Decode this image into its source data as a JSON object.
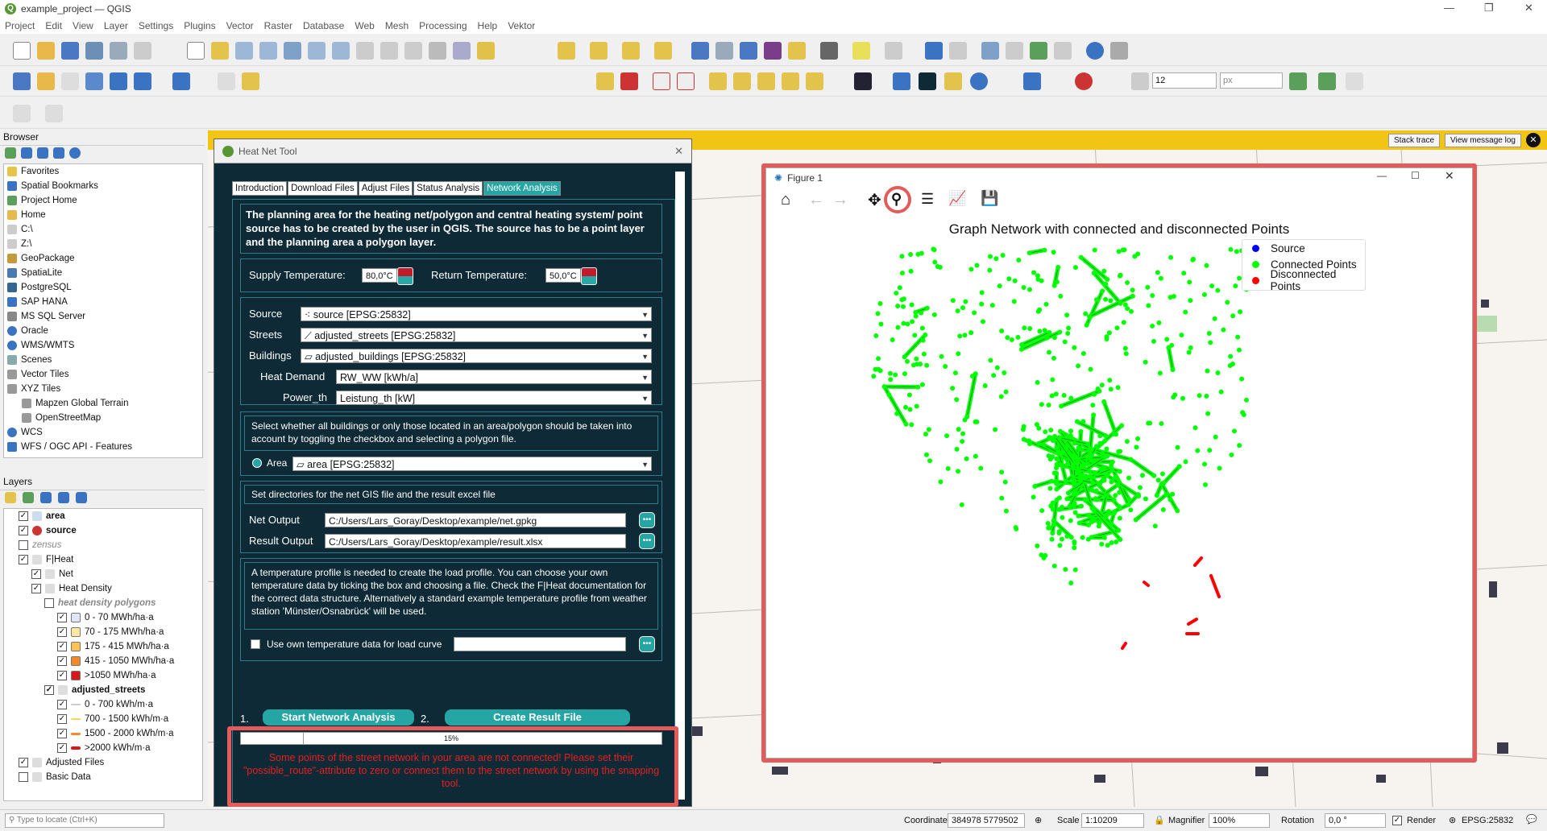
{
  "window": {
    "title": "example_project — QGIS"
  },
  "menu": [
    "Project",
    "Edit",
    "View",
    "Layer",
    "Settings",
    "Plugins",
    "Vector",
    "Raster",
    "Database",
    "Web",
    "Mesh",
    "Processing",
    "Help",
    "Vektor"
  ],
  "toolbar": {
    "font_size": "12",
    "unit": "px"
  },
  "browser": {
    "title": "Browser",
    "items": [
      "Favorites",
      "Spatial Bookmarks",
      "Project Home",
      "Home",
      "C:\\",
      "Z:\\",
      "GeoPackage",
      "SpatiaLite",
      "PostgreSQL",
      "SAP HANA",
      "MS SQL Server",
      "Oracle",
      "WMS/WMTS",
      "Scenes",
      "Vector Tiles",
      "XYZ Tiles",
      "Mapzen Global Terrain",
      "OpenStreetMap",
      "WCS",
      "WFS / OGC API - Features"
    ]
  },
  "layers": {
    "title": "Layers",
    "items": [
      "area",
      "source",
      "zensus",
      "F|Heat",
      "Net",
      "Heat Density",
      "heat density polygons",
      "0 - 70 MWh/ha·a",
      "70 - 175 MWh/ha·a",
      "175 - 415 MWh/ha·a",
      "415 - 1050 MWh/ha·a",
      ">1050 MWh/ha·a",
      "adjusted_streets",
      "0 - 700 kWh/m·a",
      "700 - 1500 kWh/m·a",
      "1500 - 2000 kWh/m·a",
      ">2000 kWh/m·a",
      "Adjusted Files",
      "Basic Data"
    ]
  },
  "msgbar": {
    "stack_trace": "Stack trace",
    "view_log": "View message log"
  },
  "tool": {
    "title": "Heat Net Tool",
    "tabs": [
      "Introduction",
      "Download Files",
      "Adjust Files",
      "Status Analysis",
      "Network Analysis"
    ],
    "intro_text": "The planning area for the heating net/polygon and central heating system/ point source has to be created by the user in QGIS. The source has to be a point layer and the planning area a polygon layer.",
    "supply_label": "Supply Temperature:",
    "supply_value": "80,0°C",
    "return_label": "Return Temperature:",
    "return_value": "50,0°C",
    "source_label": "Source",
    "source_value": "source [EPSG:25832]",
    "streets_label": "Streets",
    "streets_value": "adjusted_streets [EPSG:25832]",
    "buildings_label": "Buildings",
    "buildings_value": "adjusted_buildings [EPSG:25832]",
    "demand_label": "Heat Demand",
    "demand_value": "RW_WW [kWh/a]",
    "power_label": "Power_th",
    "power_value": "Leistung_th [kW]",
    "area_text": "Select whether all buildings or only those located in an area/polygon should be taken into account by toggling the checkbox and selecting a polygon file.",
    "area_label": "Area",
    "area_value": "area [EPSG:25832]",
    "dir_text": "Set directories for the net GIS file and the result excel file",
    "net_label": "Net Output",
    "net_value": "C:/Users/Lars_Goray/Desktop/example/net.gpkg",
    "result_label": "Result Output",
    "result_value": "C:/Users/Lars_Goray/Desktop/example/result.xlsx",
    "temp_text": "A temperature profile is needed to create the load profile. You can choose your own temperature data by ticking the box and choosing a file. Check the F|Heat documentation for the correct data structure. Alternatively a standard example temperature profile from weather station 'Münster/Osnabrück' will be used.",
    "own_temp_label": "Use own temperature data for load curve",
    "step1": "1.",
    "step1_btn": "Start Network Analysis",
    "step2": "2.",
    "step2_btn": "Create Result File",
    "progress_text": "15%",
    "progress": 0.15,
    "warning": "Some points of the street network in your area are not connected! Please set their \"possible_route\"-attribute to zero or connect them to the street network by using the snapping tool."
  },
  "figure": {
    "title": "Figure 1",
    "chart_data": {
      "type": "scatter",
      "title": "Graph Network with connected and disconnected Points",
      "legend_placement": "top-right",
      "series": [
        {
          "name": "Source",
          "color": "#0000ff"
        },
        {
          "name": "Connected Points",
          "color": "#00ff00"
        },
        {
          "name": "Disconnected Points",
          "color": "#ff0000"
        }
      ]
    }
  },
  "status": {
    "search_placeholder": "Type to locate (Ctrl+K)",
    "coord_label": "Coordinate",
    "coord_value": "384978  5779502",
    "scale_label": "Scale",
    "scale_value": "1:10209",
    "mag_label": "Magnifier",
    "mag_value": "100%",
    "rot_label": "Rotation",
    "rot_value": "0,0 °",
    "render_label": "Render",
    "crs": "EPSG:25832"
  }
}
